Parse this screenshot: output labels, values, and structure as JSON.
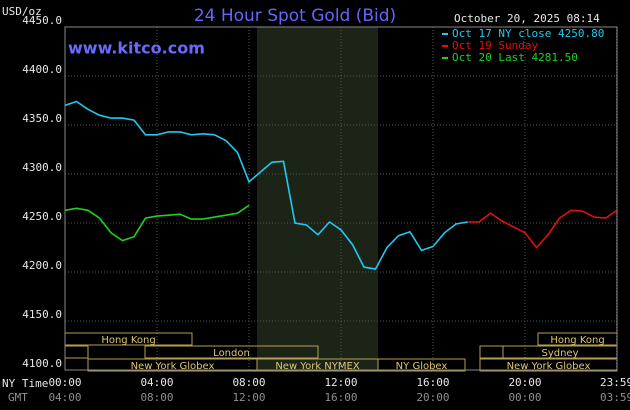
{
  "chart_data": {
    "type": "line",
    "title": "24 Hour Spot Gold (Bid)",
    "subtitle": "October 20, 2025 08:14",
    "y_label": "USD/oz",
    "source": "www.kitco.com",
    "x_label": "NY Time",
    "x2_label": "GMT",
    "xlim": [
      0,
      24
    ],
    "ylim": [
      4100,
      4450
    ],
    "xticks": [
      {
        "value": 0,
        "label": "00:00"
      },
      {
        "value": 4,
        "label": "04:00"
      },
      {
        "value": 8,
        "label": "08:00"
      },
      {
        "value": 12,
        "label": "12:00"
      },
      {
        "value": 16,
        "label": "16:00"
      },
      {
        "value": 20,
        "label": "20:00"
      },
      {
        "value": 23.98,
        "label": "23:59"
      }
    ],
    "x2ticks": [
      {
        "value": 0,
        "label": "04:00"
      },
      {
        "value": 4,
        "label": "08:00"
      },
      {
        "value": 8,
        "label": "12:00"
      },
      {
        "value": 12,
        "label": "16:00"
      },
      {
        "value": 16,
        "label": "20:00"
      },
      {
        "value": 20,
        "label": "00:00"
      },
      {
        "value": 23.98,
        "label": "03:59"
      }
    ],
    "yticks": [
      {
        "value": 4100,
        "label": "4100.0"
      },
      {
        "value": 4150,
        "label": "4150.0"
      },
      {
        "value": 4200,
        "label": "4200.0"
      },
      {
        "value": 4250,
        "label": "4250.0"
      },
      {
        "value": 4300,
        "label": "4300.0"
      },
      {
        "value": 4350,
        "label": "4350.0"
      },
      {
        "value": 4400,
        "label": "4400.0"
      },
      {
        "value": 4450,
        "label": "4450.0"
      }
    ],
    "grid": true,
    "sessions": [
      "Hong Kong",
      "London",
      "New York Globex",
      "New York NYMEX",
      "NY Globex",
      "Hong Kong",
      "Sydney",
      "New York Globex"
    ],
    "x": [
      0,
      0.5,
      1,
      1.5,
      2,
      2.5,
      3,
      3.5,
      4,
      4.5,
      5,
      5.5,
      6,
      6.5,
      7,
      7.5,
      8,
      8.5,
      9,
      9.5,
      10,
      10.5,
      11,
      11.5,
      12,
      12.5,
      13,
      13.5,
      14,
      14.5,
      15,
      15.5,
      16,
      16.5,
      17,
      17.5,
      18,
      18.5,
      19,
      19.5,
      20,
      20.5,
      21,
      21.5,
      22,
      22.5,
      23,
      23.5,
      24
    ],
    "series": [
      {
        "name": "Oct 17 NY close 4250.80",
        "color": "#22c8f0",
        "values": [
          4370,
          4374,
          4366,
          4360,
          4357,
          4357,
          4355,
          4340,
          4340,
          4343,
          4343,
          4340,
          4341,
          4340,
          4334,
          4322,
          4292,
          4302,
          4312,
          4313,
          4250,
          4248,
          4238,
          4251,
          4243,
          4228,
          4205,
          4203,
          4225,
          4237,
          4241,
          4222,
          4226,
          4240,
          4249,
          4251,
          null,
          null,
          null,
          null,
          null,
          null,
          null,
          null,
          null,
          null,
          null,
          null,
          null
        ]
      },
      {
        "name": "Oct 19 Sunday",
        "color": "#e01010",
        "values": [
          null,
          null,
          null,
          null,
          null,
          null,
          null,
          null,
          null,
          null,
          null,
          null,
          null,
          null,
          null,
          null,
          null,
          null,
          null,
          null,
          null,
          null,
          null,
          null,
          null,
          null,
          null,
          null,
          null,
          null,
          null,
          null,
          null,
          null,
          null,
          4251,
          4251,
          4260,
          4252,
          4246,
          4240,
          4225,
          4238,
          4255,
          4263,
          4262,
          4256,
          4255,
          4263
        ]
      },
      {
        "name": "Oct 20 Last 4281.50",
        "color": "#20d020",
        "values": [
          4263,
          4265,
          4263,
          4255,
          4240,
          4232,
          4236,
          4255,
          4257,
          4258,
          4259,
          4254,
          4254,
          4256,
          4258,
          4260,
          4268,
          null,
          null,
          null,
          null,
          null,
          null,
          null,
          null,
          null,
          null,
          null,
          null,
          null,
          null,
          null,
          null,
          null,
          null,
          null,
          null,
          null,
          null,
          null,
          null,
          null,
          null,
          null,
          null,
          null,
          null,
          null,
          null
        ]
      }
    ]
  }
}
